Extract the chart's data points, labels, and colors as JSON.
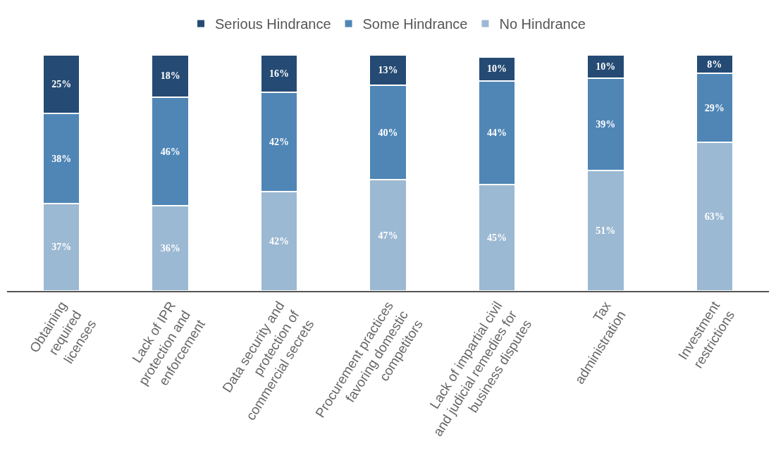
{
  "chart_data": {
    "type": "bar",
    "stacked": true,
    "legend": "top",
    "categories": [
      "Obtaining\nrequired\nlicenses",
      "Lack of IPR\nprotection and\nenforcement",
      "Data security and\nprotection of\ncommercial secrets",
      "Procurement practices\nfavoring domestic\ncompetitors",
      "Lack of impartial civil\nand judicial remedies for\nbusiness disputes",
      "Tax\nadministration",
      "Investment\nrestrictions"
    ],
    "series": [
      {
        "name": "No Hindrance",
        "color": "#9cb9d3",
        "values": [
          37,
          36,
          42,
          47,
          45,
          51,
          63
        ],
        "value_labels": [
          "37%",
          "36%",
          "42%",
          "47%",
          "45%",
          "51%",
          "63%"
        ]
      },
      {
        "name": "Some Hindrance",
        "color": "#4f86b6",
        "values": [
          38,
          46,
          42,
          40,
          44,
          39,
          29
        ],
        "value_labels": [
          "38%",
          "46%",
          "42%",
          "40%",
          "44%",
          "39%",
          "29%"
        ]
      },
      {
        "name": "Serious Hindrance",
        "color": "#254b74",
        "values": [
          25,
          18,
          16,
          13,
          10,
          10,
          8
        ],
        "value_labels": [
          "25%",
          "18%",
          "16%",
          "13%",
          "10%",
          "10%",
          "8%"
        ]
      }
    ]
  }
}
